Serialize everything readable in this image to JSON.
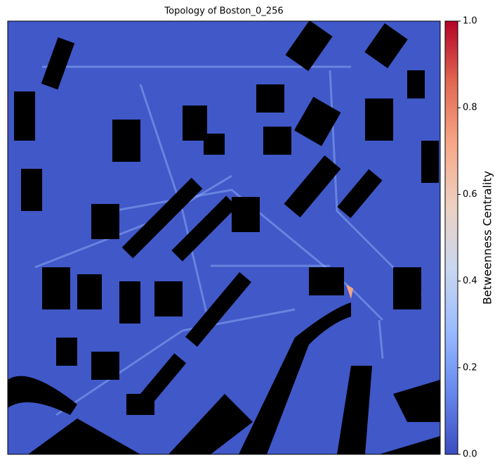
{
  "chart_data": {
    "type": "heatmap",
    "title": "Topology of Boston_0_256",
    "cmap": "coolwarm",
    "colorbar": {
      "label": "Betweenness Centrality",
      "lim": [
        0,
        1
      ],
      "ticks": [
        {
          "value": 0,
          "label": "0.0"
        },
        0.2,
        0.4,
        0.6,
        0.8,
        {
          "value": 1,
          "label": "1.0"
        }
      ]
    }
  }
}
